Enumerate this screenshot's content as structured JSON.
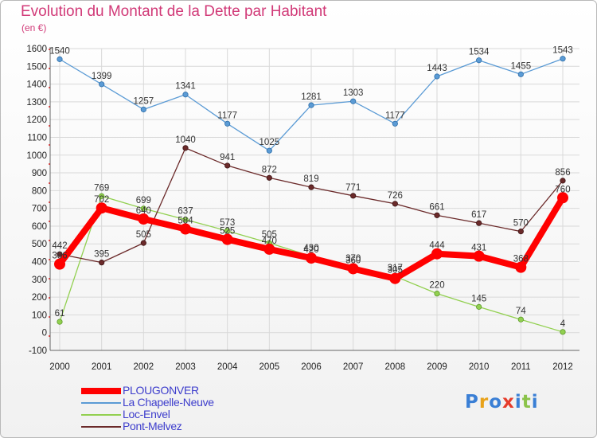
{
  "header": {
    "title": "Evolution du Montant de la Dette par Habitant",
    "subtitle": "(en €)"
  },
  "chart_data": {
    "type": "line",
    "title": "Evolution du Montant de la Dette par Habitant",
    "subtitle": "(en €)",
    "xlabel": "",
    "ylabel": "",
    "categories": [
      "2000",
      "2001",
      "2002",
      "2003",
      "2004",
      "2005",
      "2006",
      "2007",
      "2008",
      "2009",
      "2010",
      "2011",
      "2012"
    ],
    "ylim": [
      -100,
      1600
    ],
    "yticks": [
      -100,
      0,
      100,
      200,
      300,
      400,
      500,
      600,
      700,
      800,
      900,
      1000,
      1100,
      1200,
      1300,
      1400,
      1500,
      1600
    ],
    "grid": true,
    "legend_position": "bottom-left",
    "series": [
      {
        "name": "PLOUGONVER",
        "color": "#ff0000",
        "values": [
          386,
          702,
          640,
          584,
          525,
          470,
          420,
          360,
          305,
          444,
          431,
          368,
          760
        ]
      },
      {
        "name": "La Chapelle-Neuve",
        "color": "#5b9bd5",
        "values": [
          1540,
          1399,
          1257,
          1341,
          1177,
          1025,
          1281,
          1303,
          1177,
          1443,
          1534,
          1455,
          1543
        ]
      },
      {
        "name": "Loc-Envel",
        "color": "#92d050",
        "values": [
          61,
          769,
          699,
          637,
          573,
          505,
          430,
          370,
          317,
          220,
          145,
          74,
          4
        ]
      },
      {
        "name": "Pont-Melvez",
        "color": "#6b2a2a",
        "values": [
          442,
          395,
          505,
          1040,
          941,
          872,
          819,
          771,
          726,
          661,
          617,
          570,
          856
        ]
      }
    ]
  },
  "legend": {
    "items": [
      {
        "label": "PLOUGONVER"
      },
      {
        "label": "La Chapelle-Neuve"
      },
      {
        "label": "Loc-Envel"
      },
      {
        "label": "Pont-Melvez"
      }
    ]
  },
  "logo": {
    "letters": [
      {
        "ch": "P",
        "color": "#3a7fd5"
      },
      {
        "ch": "r",
        "color": "#e8a21a"
      },
      {
        "ch": "o",
        "color": "#3a7fd5"
      },
      {
        "ch": "x",
        "color": "#e63c2b"
      },
      {
        "ch": "i",
        "color": "#3a7fd5"
      },
      {
        "ch": "t",
        "color": "#8bc34a"
      },
      {
        "ch": "i",
        "color": "#3a7fd5"
      }
    ]
  }
}
